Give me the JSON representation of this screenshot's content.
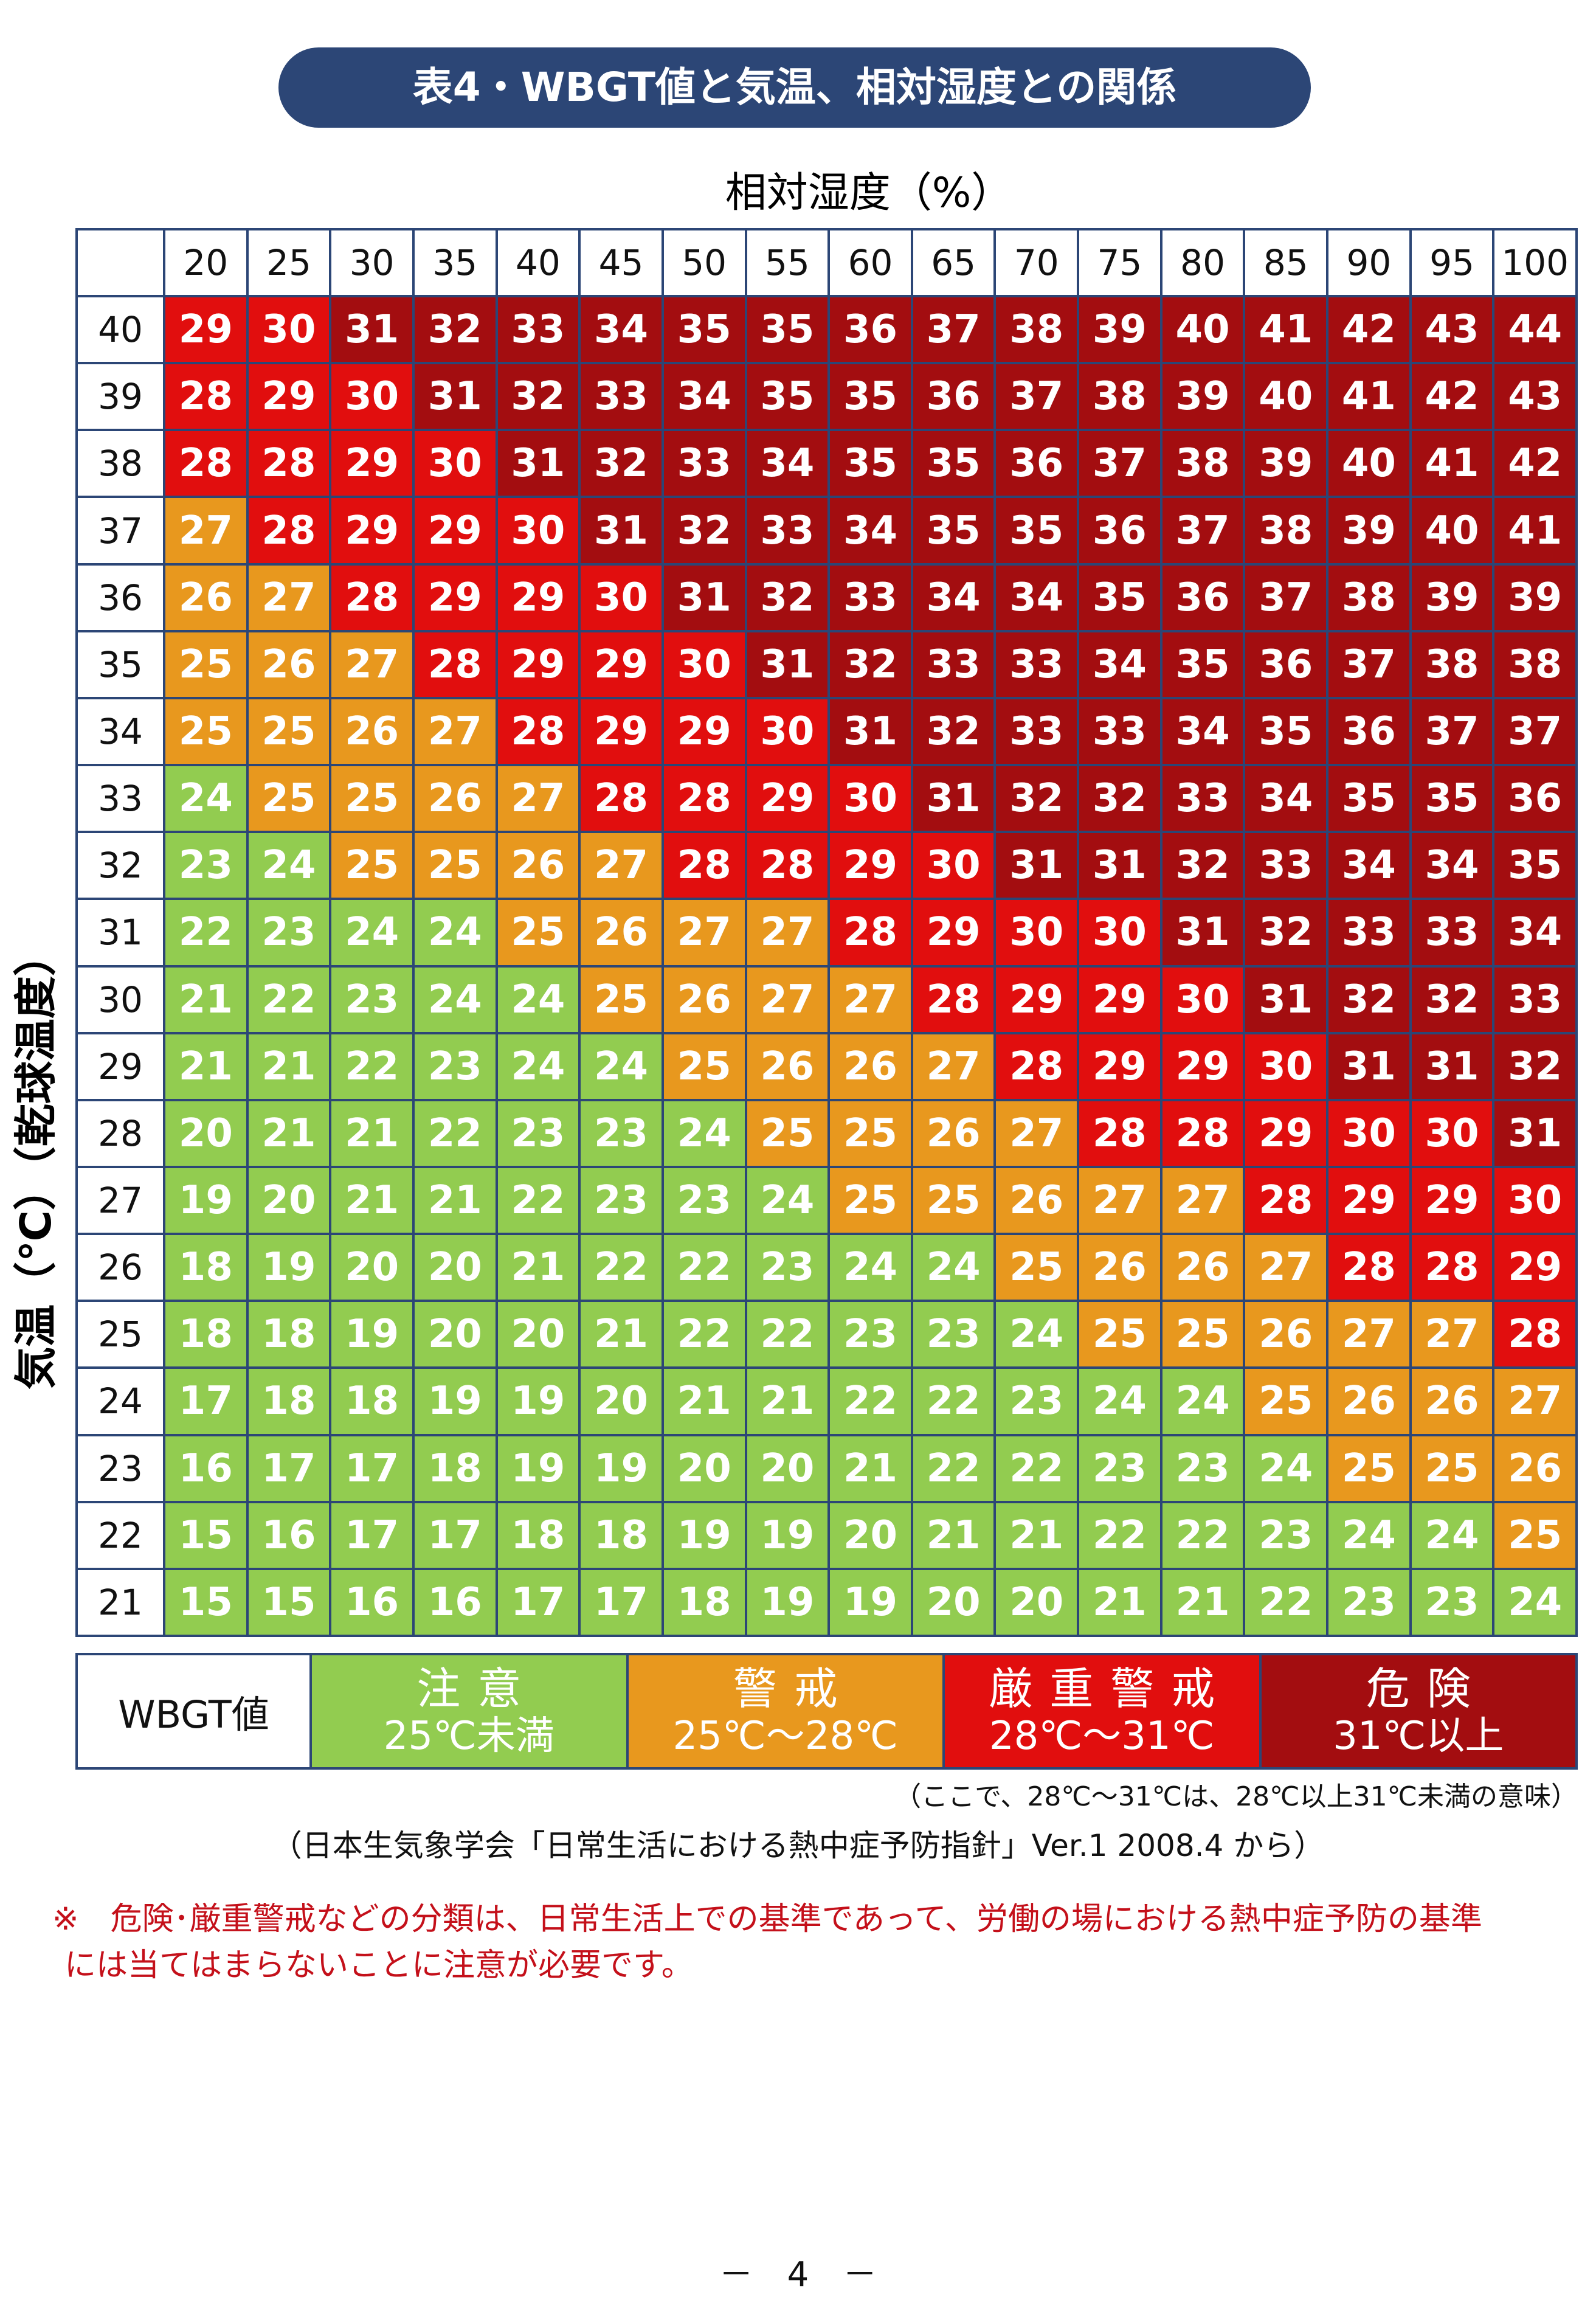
{
  "title": "表4・WBGT値と気温、相対湿度との関係",
  "x_axis_label": "相対湿度（%）",
  "y_axis_label": "気温（℃）（乾球温度）",
  "humidity": [
    "20",
    "25",
    "30",
    "35",
    "40",
    "45",
    "50",
    "55",
    "60",
    "65",
    "70",
    "75",
    "80",
    "85",
    "90",
    "95",
    "100"
  ],
  "temperature": [
    "40",
    "39",
    "38",
    "37",
    "36",
    "35",
    "34",
    "33",
    "32",
    "31",
    "30",
    "29",
    "28",
    "27",
    "26",
    "25",
    "24",
    "23",
    "22",
    "21"
  ],
  "table": [
    [
      29,
      30,
      31,
      32,
      33,
      34,
      35,
      35,
      36,
      37,
      38,
      39,
      40,
      41,
      42,
      43,
      44
    ],
    [
      28,
      29,
      30,
      31,
      32,
      33,
      34,
      35,
      35,
      36,
      37,
      38,
      39,
      40,
      41,
      42,
      43
    ],
    [
      28,
      28,
      29,
      30,
      31,
      32,
      33,
      34,
      35,
      35,
      36,
      37,
      38,
      39,
      40,
      41,
      42
    ],
    [
      27,
      28,
      29,
      29,
      30,
      31,
      32,
      33,
      34,
      35,
      35,
      36,
      37,
      38,
      39,
      40,
      41
    ],
    [
      26,
      27,
      28,
      29,
      29,
      30,
      31,
      32,
      33,
      34,
      34,
      35,
      36,
      37,
      38,
      39,
      39
    ],
    [
      25,
      26,
      27,
      28,
      29,
      29,
      30,
      31,
      32,
      33,
      33,
      34,
      35,
      36,
      37,
      38,
      38
    ],
    [
      25,
      25,
      26,
      27,
      28,
      29,
      29,
      30,
      31,
      32,
      33,
      33,
      34,
      35,
      36,
      37,
      37
    ],
    [
      24,
      25,
      25,
      26,
      27,
      28,
      28,
      29,
      30,
      31,
      32,
      32,
      33,
      34,
      35,
      35,
      36
    ],
    [
      23,
      24,
      25,
      25,
      26,
      27,
      28,
      28,
      29,
      30,
      31,
      31,
      32,
      33,
      34,
      34,
      35
    ],
    [
      22,
      23,
      24,
      24,
      25,
      26,
      27,
      27,
      28,
      29,
      30,
      30,
      31,
      32,
      33,
      33,
      34
    ],
    [
      21,
      22,
      23,
      24,
      24,
      25,
      26,
      27,
      27,
      28,
      29,
      29,
      30,
      31,
      32,
      32,
      33
    ],
    [
      21,
      21,
      22,
      23,
      24,
      24,
      25,
      26,
      26,
      27,
      28,
      29,
      29,
      30,
      31,
      31,
      32
    ],
    [
      20,
      21,
      21,
      22,
      23,
      23,
      24,
      25,
      25,
      26,
      27,
      28,
      28,
      29,
      30,
      30,
      31
    ],
    [
      19,
      20,
      21,
      21,
      22,
      23,
      23,
      24,
      25,
      25,
      26,
      27,
      27,
      28,
      29,
      29,
      30
    ],
    [
      18,
      19,
      20,
      20,
      21,
      22,
      22,
      23,
      24,
      24,
      25,
      26,
      26,
      27,
      28,
      28,
      29
    ],
    [
      18,
      18,
      19,
      20,
      20,
      21,
      22,
      22,
      23,
      23,
      24,
      25,
      25,
      26,
      27,
      27,
      28
    ],
    [
      17,
      18,
      18,
      19,
      19,
      20,
      21,
      21,
      22,
      22,
      23,
      24,
      24,
      25,
      26,
      26,
      27
    ],
    [
      16,
      17,
      17,
      18,
      19,
      19,
      20,
      20,
      21,
      22,
      22,
      23,
      23,
      24,
      25,
      25,
      26
    ],
    [
      15,
      16,
      17,
      17,
      18,
      18,
      19,
      19,
      20,
      21,
      21,
      22,
      22,
      23,
      24,
      24,
      25
    ],
    [
      15,
      15,
      16,
      16,
      17,
      17,
      18,
      19,
      19,
      20,
      20,
      21,
      21,
      22,
      23,
      23,
      24
    ]
  ],
  "colors": {
    "caution": "#92cc50",
    "warning": "#e8981e",
    "severe": "#e10e0e",
    "danger": "#a30d10",
    "title_bg": "#2c4676"
  },
  "legend": {
    "header": "WBGT値",
    "items": [
      {
        "key": "caution",
        "name": "注意",
        "range": "25℃未満"
      },
      {
        "key": "warning",
        "name": "警戒",
        "range": "25℃～28℃"
      },
      {
        "key": "severe",
        "name": "厳重警戒",
        "range": "28℃～31℃"
      },
      {
        "key": "danger",
        "name": "危険",
        "range": "31℃以上"
      }
    ]
  },
  "note": "（ここで、28℃～31℃は、28℃以上31℃未満の意味）",
  "source": "（日本生気象学会「日常生活における熱中症予防指針」Ver.1 2008.4 から）",
  "warning_note": {
    "line1": "※　危険･厳重警戒などの分類は、日常生活上での基準であって、労働の場における熱中症予防の基準",
    "line2": "には当てはまらないことに注意が必要です。"
  },
  "page_number": "－　4　－"
}
